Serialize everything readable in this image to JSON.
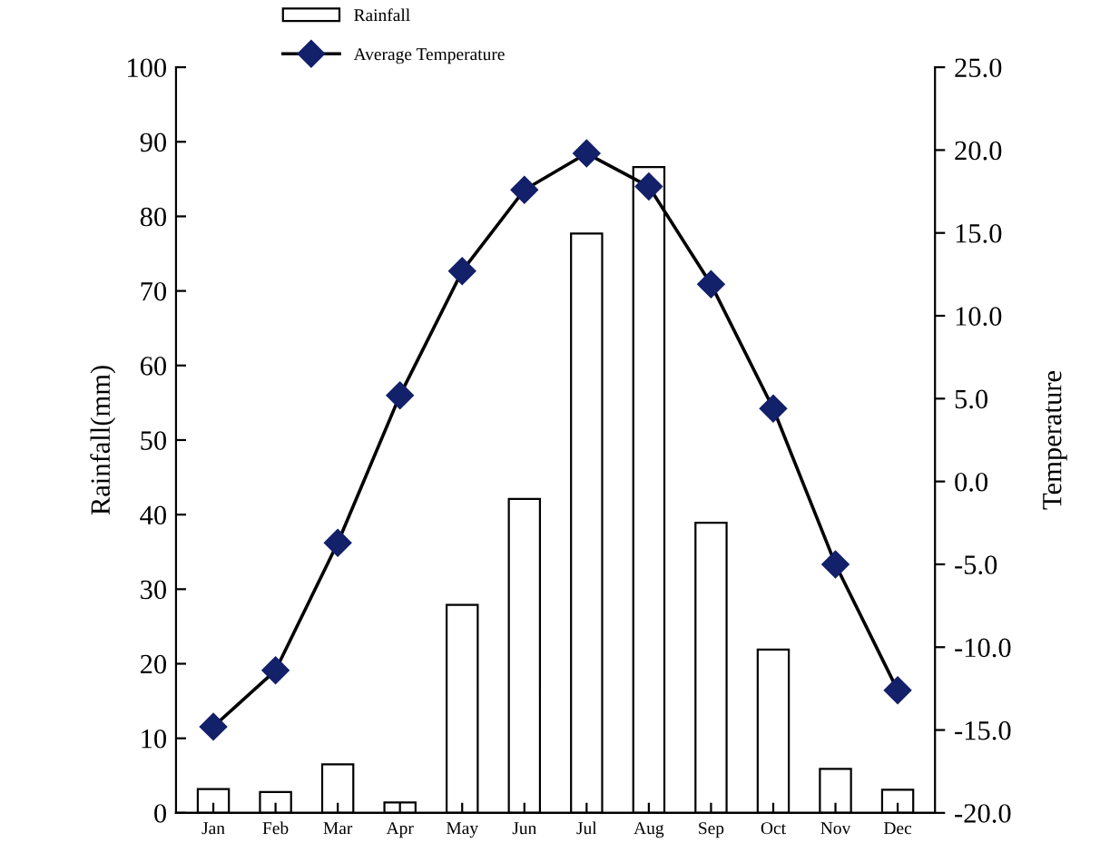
{
  "chart_data": {
    "type": "bar",
    "categories": [
      "Jan",
      "Feb",
      "Mar",
      "Apr",
      "May",
      "Jun",
      "Jul",
      "Aug",
      "Sep",
      "Oct",
      "Nov",
      "Dec"
    ],
    "series": [
      {
        "name": "Rainfall",
        "type": "bar",
        "color": "#ffffff",
        "values": [
          3.2,
          2.8,
          6.5,
          1.4,
          27.9,
          42.1,
          77.7,
          86.6,
          38.9,
          21.9,
          5.9,
          3.1
        ]
      },
      {
        "name": "Average Temperature",
        "type": "line",
        "axis": "y2",
        "color": "#000000",
        "marker": "diamond",
        "values": [
          -14.8,
          -11.4,
          -3.7,
          5.2,
          12.7,
          17.6,
          19.8,
          17.8,
          11.9,
          4.4,
          -5.0,
          -12.6
        ]
      }
    ],
    "ylabel": "Rainfall(mm)",
    "y2label": "Temperature",
    "ylim": [
      0,
      100
    ],
    "yticks": [
      0,
      10,
      20,
      30,
      40,
      50,
      60,
      70,
      80,
      90,
      100
    ],
    "y2lim": [
      -20,
      25
    ],
    "y2ticks": [
      {
        "value": -20,
        "label": "-20.0"
      },
      {
        "value": -15,
        "label": "-15.0"
      },
      {
        "value": -10,
        "label": "-10.0"
      },
      {
        "value": -5,
        "label": "-5.0"
      },
      {
        "value": 0,
        "label": "0.0"
      },
      {
        "value": 5,
        "label": "5.0"
      },
      {
        "value": 10,
        "label": "10.0"
      },
      {
        "value": 15,
        "label": "15.0"
      },
      {
        "value": 20,
        "label": "20.0"
      },
      {
        "value": 25,
        "label": "25.0"
      }
    ],
    "grid": false,
    "legend": "top",
    "line_style": "solid"
  }
}
